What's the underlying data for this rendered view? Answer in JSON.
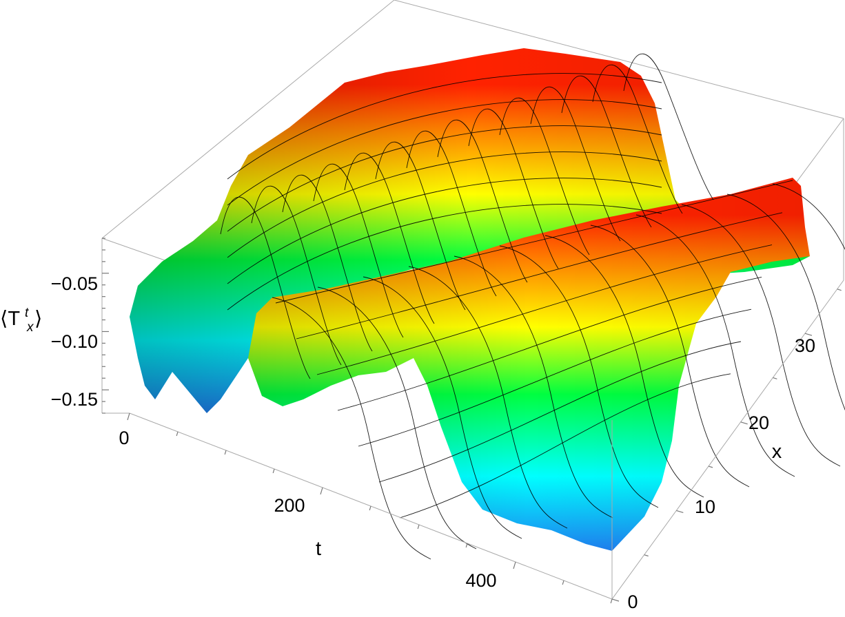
{
  "chart_data": {
    "type": "surface3d",
    "title": "",
    "xlabel": "t",
    "ylabel": "x",
    "zlabel_main": "⟨T",
    "zlabel_sup": "t",
    "zlabel_sub": "x",
    "zlabel_close": "⟩",
    "t_ticks": [
      "0",
      "200",
      "400"
    ],
    "x_ticks": [
      "0",
      "10",
      "20",
      "30"
    ],
    "z_ticks": [
      "−0.05",
      "−0.10",
      "−0.15"
    ],
    "t_range": [
      0,
      500
    ],
    "x_range": [
      0,
      36
    ],
    "z_range": [
      -0.17,
      -0.02
    ],
    "colormap": [
      "#1e7ff0",
      "#00ffff",
      "#00ff40",
      "#ffff00",
      "#ff8000",
      "#ff2200"
    ],
    "colormap_name": "rainbow",
    "mesh_lines": true,
    "box": true,
    "ridges": [
      {
        "name": "",
        "x_center": 8,
        "t_rise": 130,
        "t_fall": 320,
        "z_peak": -0.03
      },
      {
        "name": "",
        "x_center": 28,
        "t_rise": 20,
        "t_fall": 210,
        "z_peak": -0.03
      }
    ],
    "baseline_z": -0.13
  }
}
